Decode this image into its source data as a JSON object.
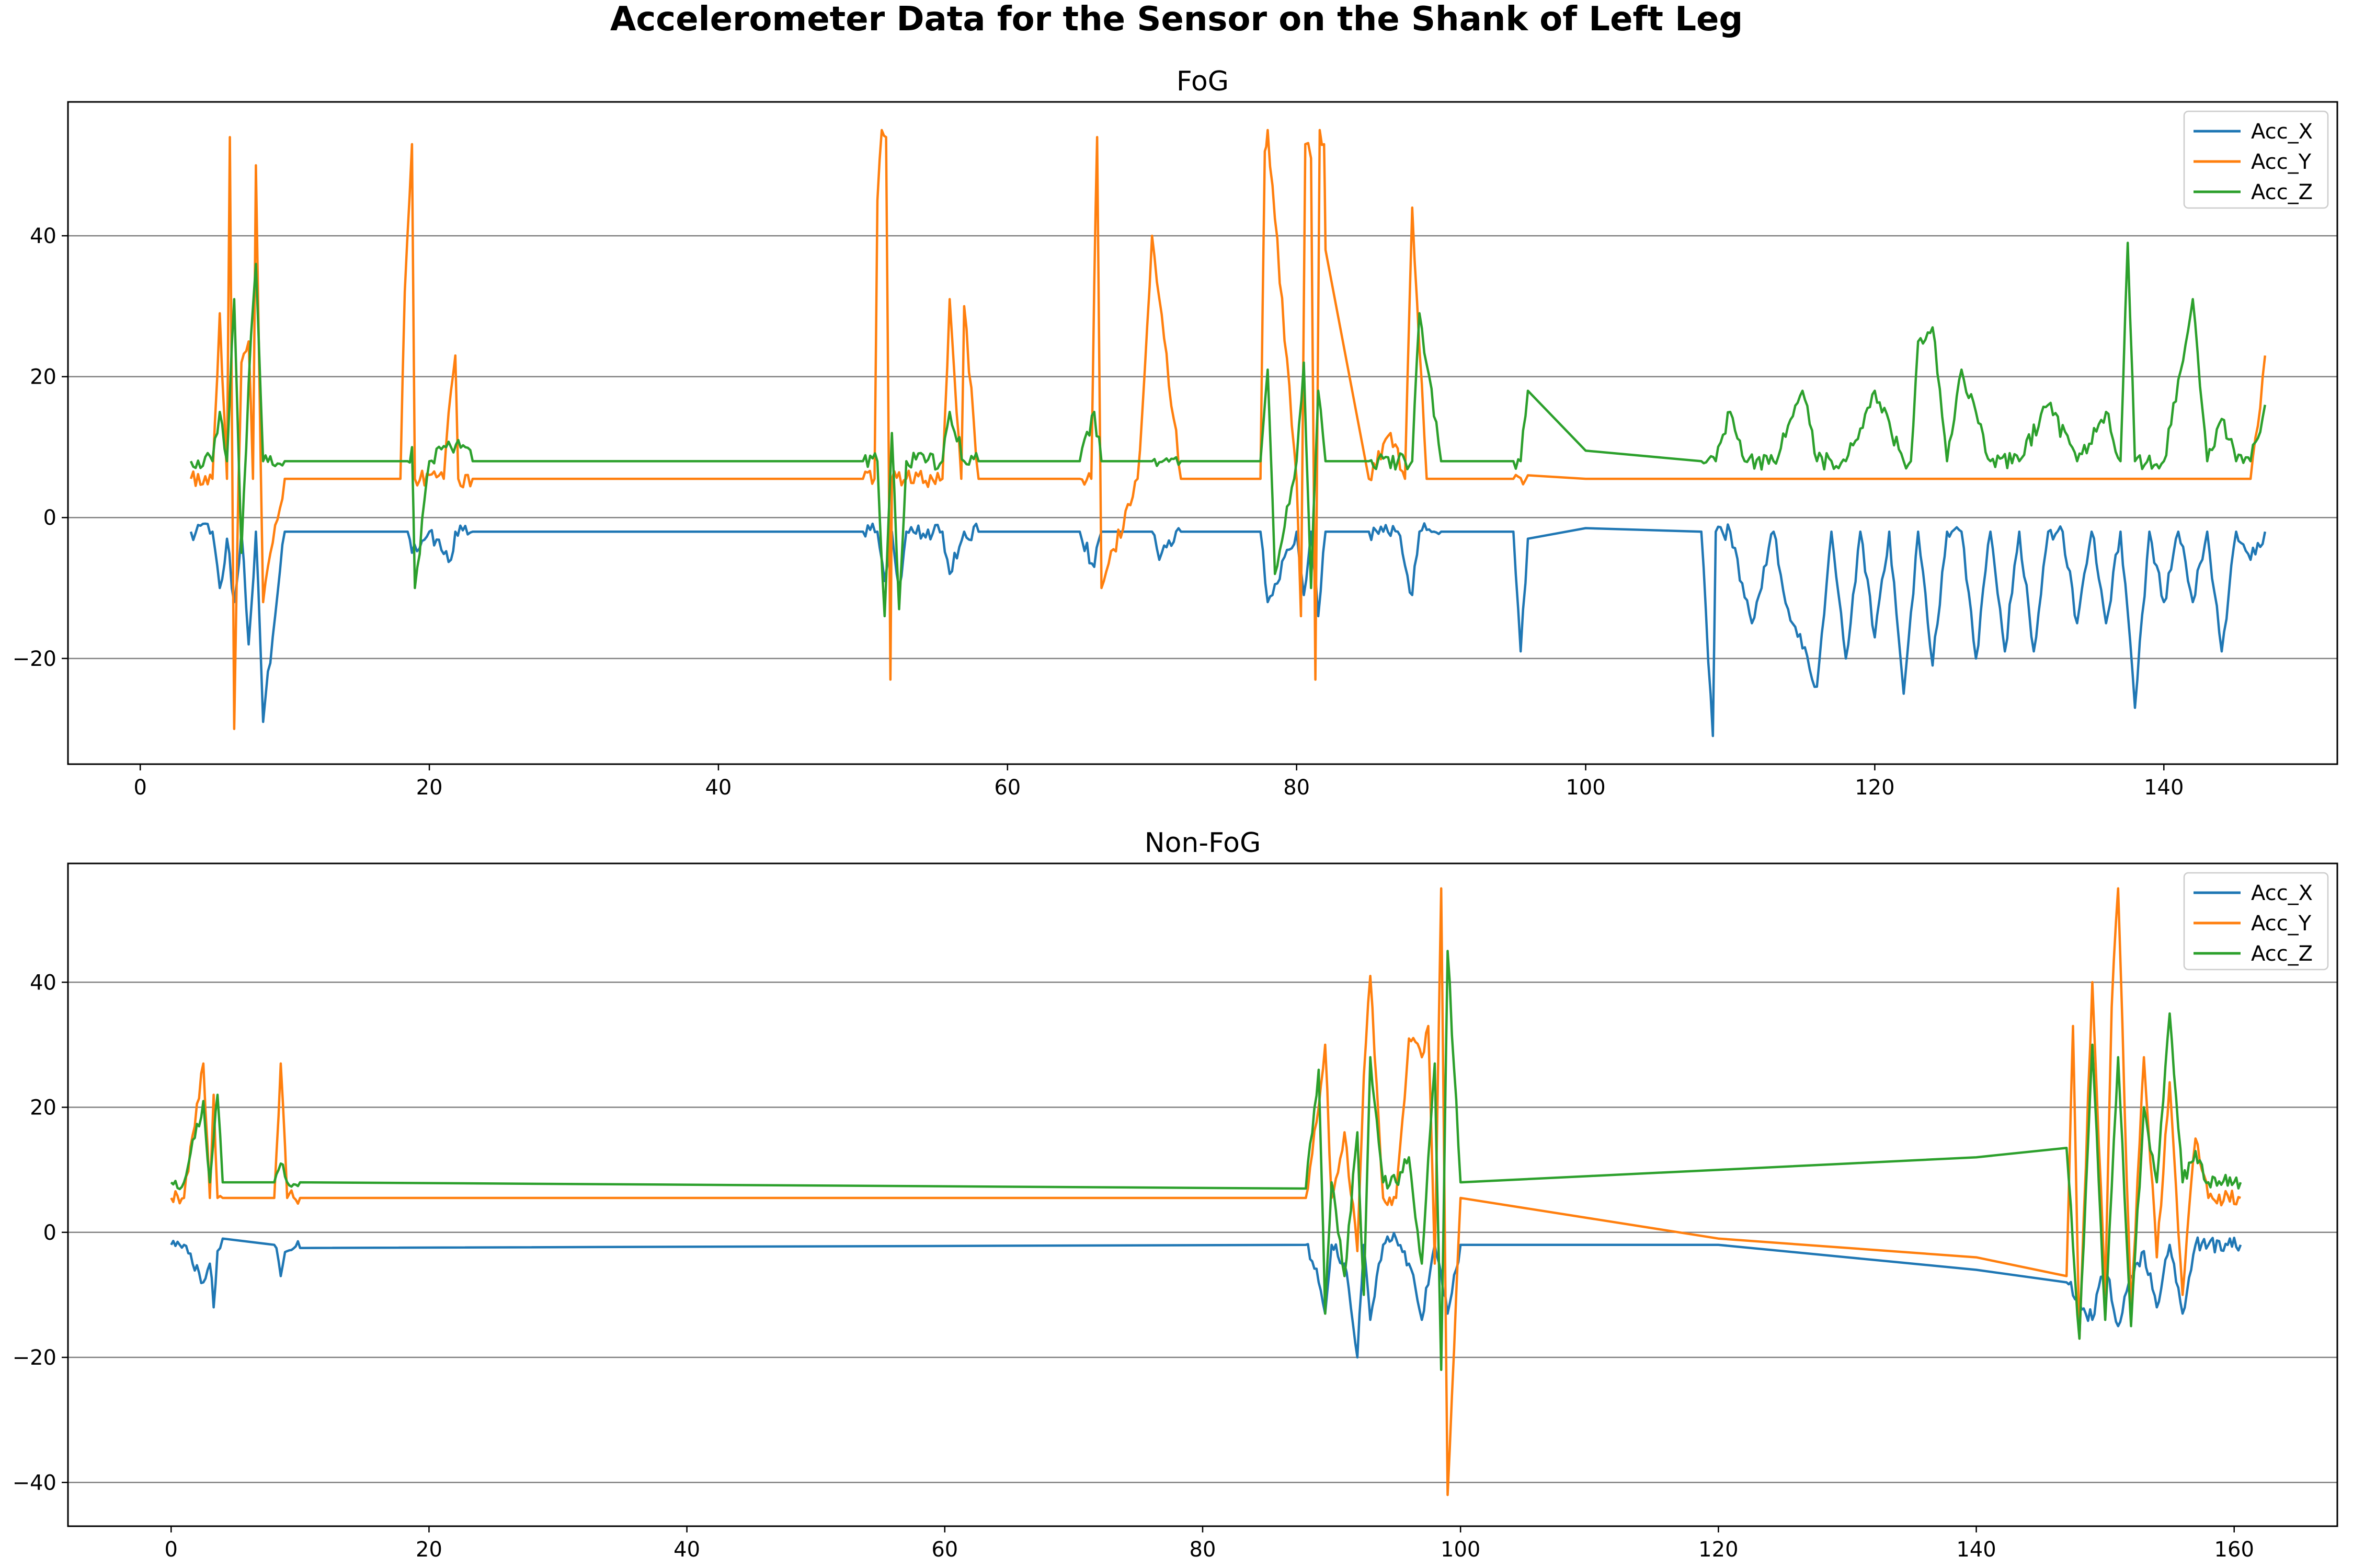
{
  "figure": {
    "title": "Accelerometer Data for the Sensor on the Shank of Left Leg"
  },
  "colors": {
    "Acc_X": "#1f77b4",
    "Acc_Y": "#ff7f0e",
    "Acc_Z": "#2ca02c",
    "grid": "#808080",
    "axis": "#000000"
  },
  "chart_data": [
    {
      "type": "line",
      "title": "FoG",
      "xlabel": "",
      "ylabel": "",
      "xlim": [
        -5,
        152
      ],
      "ylim": [
        -35,
        59
      ],
      "x_ticks": [
        0,
        20,
        40,
        60,
        80,
        100,
        120,
        140
      ],
      "y_ticks": [
        -20,
        0,
        20,
        40
      ],
      "grid": "horizontal",
      "legend": "top-right",
      "baselines": {
        "Acc_X": -2.0,
        "Acc_Y": 5.5,
        "Acc_Z": 8.0
      },
      "series": [
        {
          "name": "Acc_X",
          "x": [
            3.5,
            5,
            5.5,
            6,
            6.5,
            7,
            7.5,
            8,
            8.5,
            10,
            18.5,
            18.8,
            20,
            21.5,
            21.8,
            23,
            50,
            51,
            51.5,
            52,
            52.5,
            53,
            55.5,
            56,
            57,
            58,
            65,
            66,
            66.5,
            70,
            70.5,
            72,
            77.5,
            78,
            80,
            80.5,
            81,
            81.5,
            82,
            85,
            86,
            87,
            88,
            88.5,
            90,
            95,
            95.5,
            96,
            100,
            108,
            108.8,
            109,
            110,
            111.5,
            113,
            114,
            116,
            117,
            118,
            119,
            120,
            121,
            122,
            123,
            124,
            125,
            126,
            127,
            128,
            129,
            130,
            131,
            132,
            133,
            134,
            135,
            136,
            137,
            138,
            139,
            140,
            141,
            142,
            143,
            144,
            145,
            146,
            147
          ],
          "y": [
            -2,
            -2,
            -10,
            -3,
            -12,
            -2,
            -18,
            -2,
            -29,
            -2,
            -2,
            -5,
            -2,
            -6,
            -2,
            -2,
            -2,
            -2,
            -9,
            -2,
            -10,
            -2,
            -2,
            -8,
            -2,
            -2,
            -2,
            -7,
            -2,
            -2,
            -6,
            -2,
            -2,
            -12,
            -2,
            -11,
            -2,
            -14,
            -2,
            -2,
            -2,
            -2,
            -11,
            -2,
            -2,
            -2,
            -19,
            -3,
            -1.5,
            -2,
            -31,
            -2,
            -2,
            -15,
            -2,
            -13,
            -24,
            -2,
            -20,
            -2,
            -17,
            -2,
            -25,
            -2,
            -21,
            -2,
            -2,
            -20,
            -2,
            -19,
            -2,
            -19,
            -2,
            -2,
            -15,
            -2,
            -15,
            -2,
            -27,
            -2,
            -12,
            -2,
            -12,
            -2,
            -19,
            -2,
            -6,
            -2
          ]
        },
        {
          "name": "Acc_Y",
          "x": [
            3.5,
            5,
            5.5,
            6,
            6.2,
            6.5,
            6.8,
            7,
            7.5,
            7.8,
            8,
            8.5,
            10,
            18,
            18.3,
            18.8,
            19,
            21,
            21.5,
            21.8,
            22,
            23,
            50,
            50.8,
            51,
            51.3,
            51.6,
            51.9,
            52,
            53,
            55.5,
            56,
            56.8,
            57,
            58,
            65,
            65.8,
            66,
            66.2,
            66.5,
            69,
            69.5,
            70,
            72,
            77.5,
            77.8,
            78,
            80,
            80.3,
            80.6,
            81,
            81.3,
            81.6,
            81.9,
            82,
            85,
            86.5,
            87.5,
            88,
            88.5,
            89,
            95,
            96,
            100,
            110,
            120,
            130,
            140,
            146,
            146.5,
            147
          ],
          "y": [
            5.5,
            5.5,
            29,
            5.5,
            54,
            -30,
            5.5,
            22,
            25,
            5.5,
            50,
            -12,
            5.5,
            5.5,
            32,
            53,
            5.5,
            5.5,
            18,
            23,
            5.5,
            5.5,
            5.5,
            5.5,
            45,
            55,
            54,
            -23,
            5.5,
            5.5,
            5.5,
            31,
            5.5,
            30,
            5.5,
            5.5,
            5.5,
            33,
            54,
            -10,
            5.5,
            21,
            40,
            5.5,
            5.5,
            52,
            55,
            5.5,
            -14,
            53,
            51,
            -23,
            55,
            53,
            38,
            5.5,
            12,
            5.5,
            44,
            24,
            5.5,
            5.5,
            6,
            5.5,
            5.5,
            5.5,
            5.5,
            5.5,
            5.5,
            13,
            23
          ]
        },
        {
          "name": "Acc_Z",
          "x": [
            3.5,
            5,
            5.5,
            6,
            6.5,
            7,
            7.5,
            8,
            8.5,
            10,
            18.5,
            18.8,
            19,
            20,
            21.5,
            22,
            23,
            50,
            51,
            51.5,
            52,
            52.5,
            53,
            55.5,
            56,
            57,
            58,
            65,
            66,
            66.5,
            70,
            72,
            77.5,
            78,
            78.5,
            80,
            80.5,
            81,
            81.5,
            82,
            85,
            87,
            88,
            88.5,
            90,
            95,
            95.5,
            96,
            100,
            108,
            109,
            110,
            111,
            113,
            115,
            116,
            118,
            120,
            122,
            122.5,
            123,
            124,
            125,
            126,
            128,
            130,
            132,
            134,
            136,
            137,
            137.5,
            138,
            140,
            142,
            143,
            144,
            145,
            146,
            147
          ],
          "y": [
            8,
            8,
            15,
            8,
            31,
            -5,
            19,
            36,
            8,
            8,
            8,
            10,
            -10,
            8,
            10,
            11,
            8,
            8,
            8,
            -14,
            12,
            -13,
            8,
            8,
            15,
            8,
            8,
            8,
            15,
            8,
            8,
            8,
            8,
            21,
            -8,
            8,
            22,
            -10,
            18,
            8,
            8,
            8,
            8,
            29,
            8,
            8,
            8,
            18,
            9.5,
            8,
            8,
            15,
            8,
            8,
            18,
            8,
            8,
            18,
            8,
            8,
            25,
            27,
            8,
            21,
            8,
            8,
            16,
            8,
            15,
            8,
            39,
            8,
            8,
            31,
            8,
            14,
            8,
            8,
            16
          ]
        }
      ]
    },
    {
      "type": "line",
      "title": "Non-FoG",
      "xlabel": "",
      "ylabel": "",
      "xlim": [
        -8,
        168
      ],
      "ylim": [
        -47,
        59
      ],
      "x_ticks": [
        0,
        20,
        40,
        60,
        80,
        100,
        120,
        140,
        160
      ],
      "y_ticks": [
        -40,
        -20,
        0,
        20,
        40
      ],
      "grid": "horizontal",
      "legend": "top-right",
      "series": [
        {
          "name": "Acc_X",
          "x": [
            0,
            1,
            2.5,
            3,
            3.3,
            3.6,
            4,
            8,
            8.5,
            9,
            10,
            88,
            89,
            89.5,
            90,
            91,
            92,
            92.5,
            93,
            94,
            95,
            96,
            97,
            98,
            99,
            100,
            110,
            120,
            130,
            140,
            147,
            148,
            149,
            150,
            151,
            152,
            153,
            154,
            155,
            156,
            157,
            158,
            160.5
          ],
          "y": [
            -2,
            -2,
            -8,
            -5,
            -12,
            -3,
            -1,
            -2,
            -7,
            -3,
            -2.5,
            -2,
            -8,
            -13,
            -2,
            -5,
            -20,
            -2,
            -14,
            -2,
            -1,
            -5,
            -14,
            -2,
            -13,
            -2,
            -2,
            -2,
            -4,
            -6,
            -8,
            -11,
            -14,
            -5,
            -15,
            -7,
            -3,
            -12,
            -2,
            -13,
            -2,
            -2,
            -2
          ]
        },
        {
          "name": "Acc_Y",
          "x": [
            0,
            1,
            2.5,
            3,
            3.3,
            3.6,
            4,
            8,
            8.5,
            9,
            10,
            88,
            89,
            89.5,
            90,
            91,
            92,
            92.5,
            93,
            94,
            95,
            96,
            97,
            97.5,
            98,
            98.5,
            99,
            100,
            120,
            140,
            147,
            147.5,
            148,
            149,
            150,
            150.5,
            151,
            152,
            153,
            154,
            155,
            156,
            157,
            158,
            160.5
          ],
          "y": [
            5.5,
            5.5,
            27,
            5.5,
            22,
            5.5,
            5.5,
            5.5,
            27,
            5.5,
            5.5,
            5.5,
            20,
            30,
            5.5,
            16,
            -3,
            25,
            41,
            5.5,
            5.5,
            31,
            28,
            33,
            -5,
            55,
            -42,
            5.5,
            -1,
            -4,
            -7,
            33,
            -17,
            40,
            -10,
            36,
            55,
            -13,
            28,
            -4,
            24,
            -10,
            15,
            5.5,
            5.5
          ]
        },
        {
          "name": "Acc_Z",
          "x": [
            0,
            1,
            2.5,
            3,
            3.3,
            3.6,
            4,
            8,
            8.5,
            9,
            10,
            88,
            89,
            89.5,
            90,
            91,
            92,
            92.5,
            93,
            94,
            95,
            96,
            97,
            98,
            98.5,
            99,
            100,
            110,
            120,
            130,
            140,
            147,
            148,
            149,
            150,
            151,
            152,
            153,
            154,
            155,
            156,
            157,
            158,
            160.5
          ],
          "y": [
            8,
            8,
            21,
            8,
            15,
            22,
            8,
            8,
            11,
            8,
            8,
            7,
            26,
            -13,
            8,
            -7,
            16,
            -10,
            28,
            8,
            8,
            12,
            -5,
            27,
            -22,
            45,
            8,
            9,
            10,
            11,
            12,
            13.5,
            -17,
            30,
            -14,
            28,
            -15,
            20,
            8,
            35,
            8,
            13,
            8,
            8
          ]
        }
      ]
    }
  ]
}
